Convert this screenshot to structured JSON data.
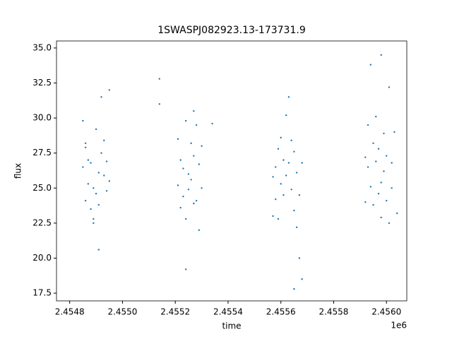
{
  "chart_data": {
    "type": "scatter",
    "title": "1SWASPJ082923.13-173731.9",
    "x_label": "time",
    "y_label": "flux",
    "x_offset_label": "1e6",
    "color": "#1f77b4",
    "xlim": [
      2.45475,
      2.456077
    ],
    "ylim": [
      16.95,
      35.5
    ],
    "xticks": [
      2.4548,
      {
        "value": 2.455,
        "label": "2.4550"
      },
      2.4552,
      2.4554,
      2.4556,
      2.4558,
      {
        "value": 2.456,
        "label": "2.4560"
      }
    ],
    "yticks": [
      17.5,
      {
        "value": 20,
        "label": "20.0"
      },
      22.5,
      {
        "value": 25,
        "label": "25.0"
      },
      27.5,
      {
        "value": 30,
        "label": "30.0"
      },
      32.5,
      {
        "value": 35,
        "label": "35.0"
      }
    ],
    "x": [
      2.45485,
      2.45485,
      2.45486,
      2.45486,
      2.45487,
      2.45487,
      2.45488,
      2.45488,
      2.45489,
      2.45489,
      2.4549,
      2.4549,
      2.45491,
      2.45491,
      2.45492,
      2.45492,
      2.45493,
      2.45493,
      2.45494,
      2.45494,
      2.45495,
      2.45495,
      2.45491,
      2.45486,
      2.45489,
      2.45521,
      2.45521,
      2.45522,
      2.45522,
      2.45523,
      2.45523,
      2.45524,
      2.45524,
      2.45525,
      2.45525,
      2.45526,
      2.45526,
      2.45527,
      2.45527,
      2.45528,
      2.45528,
      2.45529,
      2.45529,
      2.4553,
      2.4553,
      2.45514,
      2.45514,
      2.45534,
      2.45524,
      2.45527,
      2.45557,
      2.45557,
      2.45558,
      2.45558,
      2.45559,
      2.45559,
      2.4556,
      2.4556,
      2.45561,
      2.45561,
      2.45562,
      2.45562,
      2.45563,
      2.45563,
      2.45564,
      2.45564,
      2.45565,
      2.45565,
      2.45566,
      2.45566,
      2.45567,
      2.45567,
      2.45568,
      2.45568,
      2.45565,
      2.45592,
      2.45592,
      2.45593,
      2.45593,
      2.45594,
      2.45594,
      2.45595,
      2.45595,
      2.45596,
      2.45596,
      2.45597,
      2.45597,
      2.45598,
      2.45598,
      2.45599,
      2.45599,
      2.456,
      2.456,
      2.45601,
      2.45601,
      2.45602,
      2.45602,
      2.45603,
      2.45604,
      2.45598
    ],
    "values": [
      29.8,
      26.5,
      28.2,
      24.1,
      27.0,
      25.3,
      23.5,
      26.8,
      22.5,
      25.0,
      29.2,
      24.6,
      26.1,
      23.8,
      31.5,
      27.5,
      25.9,
      28.4,
      24.8,
      26.9,
      32.0,
      25.5,
      20.6,
      27.9,
      22.8,
      28.5,
      25.2,
      27.0,
      23.6,
      26.4,
      24.4,
      29.8,
      22.8,
      26.0,
      24.9,
      28.2,
      25.6,
      23.9,
      27.3,
      29.5,
      24.1,
      26.7,
      22.0,
      28.0,
      25.0,
      31.0,
      32.8,
      29.6,
      19.2,
      30.5,
      23.0,
      25.8,
      24.2,
      26.5,
      27.8,
      22.8,
      25.3,
      28.6,
      24.5,
      27.0,
      30.2,
      25.9,
      31.5,
      26.8,
      28.4,
      24.9,
      27.6,
      23.4,
      22.2,
      26.1,
      20.0,
      24.5,
      26.8,
      18.5,
      17.8,
      24.0,
      27.2,
      26.5,
      29.5,
      33.8,
      25.1,
      28.2,
      23.8,
      26.9,
      30.1,
      24.6,
      27.8,
      25.4,
      22.9,
      28.9,
      26.2,
      24.1,
      27.3,
      32.2,
      22.5,
      26.8,
      25.0,
      29.0,
      23.2,
      34.5
    ]
  }
}
